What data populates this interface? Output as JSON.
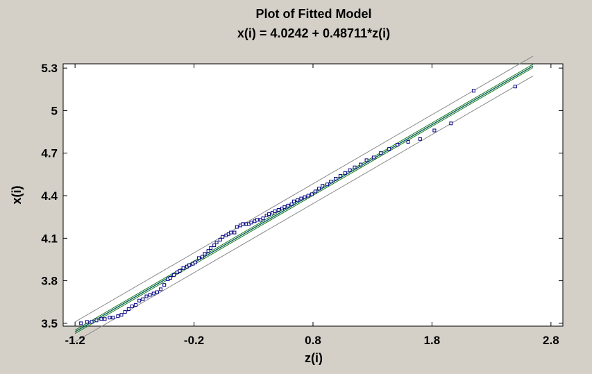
{
  "chart_data": {
    "type": "scatter",
    "title": "Plot of Fitted Model",
    "subtitle": "x(i) = 4.0242 + 0.48711*z(i)",
    "xlabel": "z(i)",
    "ylabel": "x(i)",
    "xlim": [
      -1.3,
      2.9
    ],
    "ylim": [
      3.48,
      5.33
    ],
    "xticks": [
      -1.2,
      -0.2,
      0.8,
      1.8,
      2.8
    ],
    "xtick_labels": [
      "-1.2",
      "-0.2",
      "0.8",
      "1.8",
      "2.8"
    ],
    "yticks": [
      3.5,
      3.8,
      4.1,
      4.4,
      4.7,
      5.0,
      5.3
    ],
    "ytick_labels": [
      "3.5",
      "3.8",
      "4.1",
      "4.4",
      "4.7",
      "5",
      "5.3"
    ],
    "fit": {
      "intercept": 4.0242,
      "slope": 0.48711,
      "x_range": [
        -1.2,
        2.65
      ]
    },
    "confidence_band_halfwidth": 0.012,
    "prediction_band_halfwidth": 0.07,
    "grid": false,
    "legend": "none",
    "colors": {
      "points": "#000080",
      "fit_line": "#006060",
      "confidence_band": "#1a7a1a",
      "prediction_band": "#888888",
      "plot_background": "#ffffff",
      "frame_background": "#d4d0c8"
    },
    "points": {
      "x": [
        -1.15,
        -1.1,
        -1.06,
        -1.02,
        -0.98,
        -0.95,
        -0.91,
        -0.88,
        -0.84,
        -0.81,
        -0.78,
        -0.75,
        -0.72,
        -0.69,
        -0.66,
        -0.63,
        -0.6,
        -0.57,
        -0.54,
        -0.51,
        -0.48,
        -0.45,
        -0.42,
        -0.4,
        -0.37,
        -0.34,
        -0.32,
        -0.29,
        -0.26,
        -0.24,
        -0.21,
        -0.19,
        -0.16,
        -0.13,
        -0.11,
        -0.08,
        -0.06,
        -0.03,
        -0.01,
        0.02,
        0.04,
        0.07,
        0.09,
        0.11,
        0.14,
        0.16,
        0.19,
        0.21,
        0.24,
        0.26,
        0.28,
        0.31,
        0.33,
        0.36,
        0.38,
        0.41,
        0.43,
        0.46,
        0.48,
        0.51,
        0.54,
        0.56,
        0.59,
        0.62,
        0.64,
        0.67,
        0.7,
        0.73,
        0.76,
        0.79,
        0.82,
        0.85,
        0.88,
        0.92,
        0.95,
        0.99,
        1.03,
        1.07,
        1.11,
        1.15,
        1.2,
        1.25,
        1.31,
        1.37,
        1.44,
        1.51,
        1.6,
        1.7,
        1.82,
        1.96,
        2.15,
        2.5
      ],
      "y": [
        3.5,
        3.51,
        3.51,
        3.52,
        3.53,
        3.53,
        3.54,
        3.54,
        3.55,
        3.56,
        3.58,
        3.6,
        3.62,
        3.63,
        3.66,
        3.67,
        3.69,
        3.7,
        3.71,
        3.72,
        3.74,
        3.77,
        3.81,
        3.82,
        3.84,
        3.86,
        3.87,
        3.89,
        3.9,
        3.91,
        3.92,
        3.93,
        3.96,
        3.97,
        3.99,
        4.01,
        4.03,
        4.05,
        4.07,
        4.09,
        4.11,
        4.12,
        4.13,
        4.14,
        4.14,
        4.18,
        4.19,
        4.2,
        4.2,
        4.2,
        4.21,
        4.22,
        4.23,
        4.23,
        4.24,
        4.26,
        4.27,
        4.28,
        4.29,
        4.3,
        4.31,
        4.32,
        4.33,
        4.34,
        4.36,
        4.37,
        4.38,
        4.39,
        4.4,
        4.41,
        4.43,
        4.45,
        4.47,
        4.48,
        4.5,
        4.52,
        4.54,
        4.56,
        4.58,
        4.6,
        4.62,
        4.65,
        4.67,
        4.7,
        4.73,
        4.76,
        4.78,
        4.8,
        4.86,
        4.91,
        5.14,
        5.17
      ]
    }
  }
}
